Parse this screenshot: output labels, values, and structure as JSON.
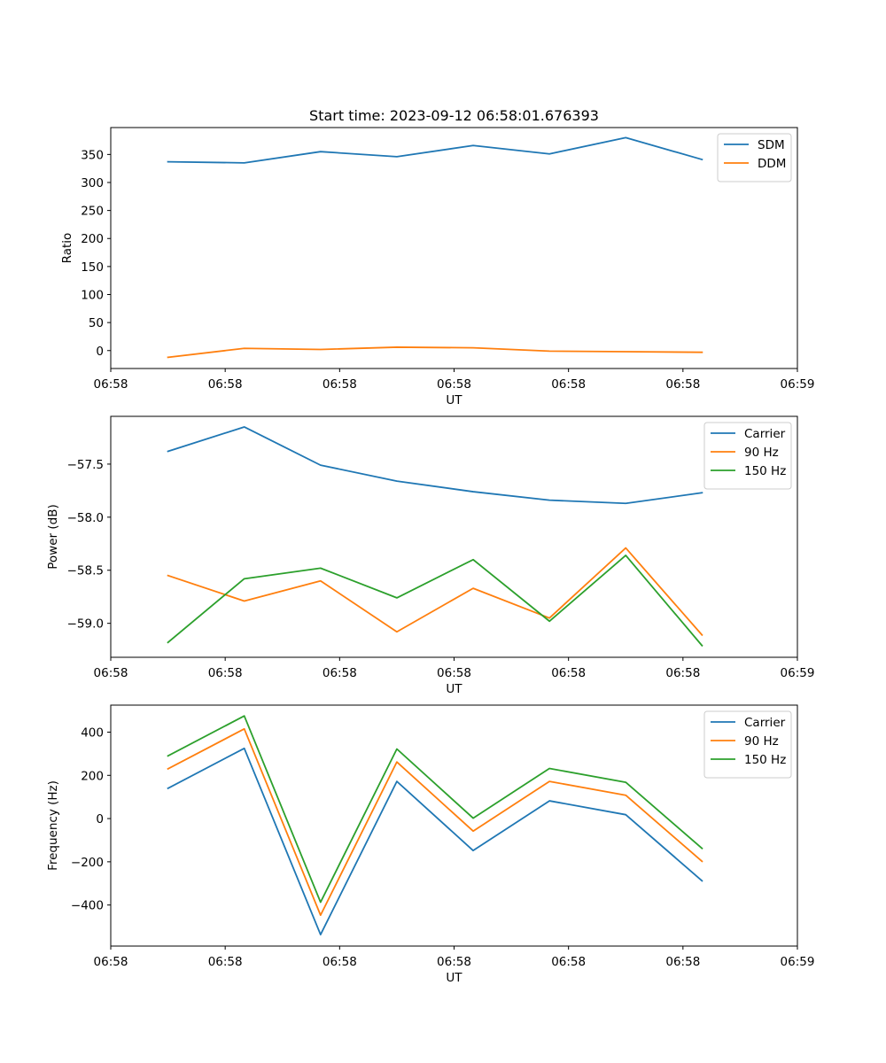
{
  "chart_data": [
    {
      "type": "line",
      "title": "Start time: 2023-09-12 06:58:01.676393",
      "xlabel": "UT",
      "ylabel": "Ratio",
      "x": [
        1,
        2,
        3,
        4,
        5,
        6,
        7,
        8
      ],
      "xlim": [
        0.25,
        9.25
      ],
      "ylim": [
        -32,
        398
      ],
      "xticks": [
        0.25,
        1.75,
        3.25,
        4.75,
        6.25,
        7.75,
        9.25
      ],
      "xtick_labels": [
        "06:58",
        "06:58",
        "06:58",
        "06:58",
        "06:58",
        "06:58",
        "06:59"
      ],
      "yticks": [
        0,
        50,
        100,
        150,
        200,
        250,
        300,
        350
      ],
      "ytick_labels": [
        "0",
        "50",
        "100",
        "150",
        "200",
        "250",
        "300",
        "350"
      ],
      "legend_position": "top-right",
      "series": [
        {
          "name": "SDM",
          "color": "#1f77b4",
          "values": [
            337,
            335,
            355,
            346,
            366,
            351,
            380,
            341
          ]
        },
        {
          "name": "DDM",
          "color": "#ff7f0e",
          "values": [
            -12,
            4,
            2,
            6,
            5,
            -1,
            -2,
            -3
          ]
        }
      ]
    },
    {
      "type": "line",
      "title": "",
      "xlabel": "UT",
      "ylabel": "Power (dB)",
      "x": [
        1,
        2,
        3,
        4,
        5,
        6,
        7,
        8
      ],
      "xlim": [
        0.25,
        9.25
      ],
      "ylim": [
        -59.32,
        -57.05
      ],
      "xticks": [
        0.25,
        1.75,
        3.25,
        4.75,
        6.25,
        7.75,
        9.25
      ],
      "xtick_labels": [
        "06:58",
        "06:58",
        "06:58",
        "06:58",
        "06:58",
        "06:58",
        "06:59"
      ],
      "yticks": [
        -59.0,
        -58.5,
        -58.0,
        -57.5
      ],
      "ytick_labels": [
        "−59.0",
        "−58.5",
        "−58.0",
        "−57.5"
      ],
      "legend_position": "top-right",
      "series": [
        {
          "name": "Carrier",
          "color": "#1f77b4",
          "values": [
            -57.38,
            -57.15,
            -57.51,
            -57.66,
            -57.76,
            -57.84,
            -57.87,
            -57.77
          ]
        },
        {
          "name": "90 Hz",
          "color": "#ff7f0e",
          "values": [
            -58.55,
            -58.79,
            -58.6,
            -59.08,
            -58.67,
            -58.95,
            -58.29,
            -59.11
          ]
        },
        {
          "name": "150 Hz",
          "color": "#2ca02c",
          "values": [
            -59.18,
            -58.58,
            -58.48,
            -58.76,
            -58.4,
            -58.98,
            -58.36,
            -59.21
          ]
        }
      ]
    },
    {
      "type": "line",
      "title": "",
      "xlabel": "UT",
      "ylabel": "Frequency (Hz)",
      "x": [
        1,
        2,
        3,
        4,
        5,
        6,
        7,
        8
      ],
      "xlim": [
        0.25,
        9.25
      ],
      "ylim": [
        -590,
        525
      ],
      "xticks": [
        0.25,
        1.75,
        3.25,
        4.75,
        6.25,
        7.75,
        9.25
      ],
      "xtick_labels": [
        "06:58",
        "06:58",
        "06:58",
        "06:58",
        "06:58",
        "06:58",
        "06:59"
      ],
      "yticks": [
        -400,
        -200,
        0,
        200,
        400
      ],
      "ytick_labels": [
        "−400",
        "−200",
        "0",
        "200",
        "400"
      ],
      "legend_position": "top-right",
      "series": [
        {
          "name": "Carrier",
          "color": "#1f77b4",
          "values": [
            140,
            325,
            -537,
            172,
            -148,
            82,
            18,
            -288
          ]
        },
        {
          "name": "90 Hz",
          "color": "#ff7f0e",
          "values": [
            230,
            415,
            -447,
            262,
            -58,
            172,
            108,
            -198
          ]
        },
        {
          "name": "150 Hz",
          "color": "#2ca02c",
          "values": [
            290,
            475,
            -387,
            322,
            2,
            232,
            168,
            -138
          ]
        }
      ]
    }
  ]
}
